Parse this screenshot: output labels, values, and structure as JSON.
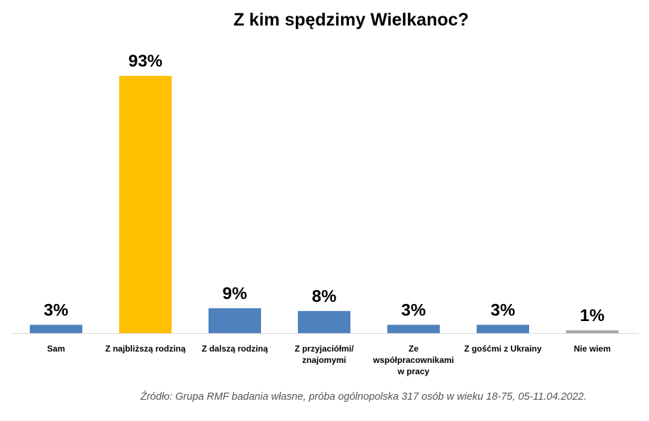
{
  "chart_data": {
    "type": "bar",
    "title": "Z kim spędzimy Wielkanoc?",
    "categories": [
      [
        "Sam"
      ],
      [
        "Z najbliższą rodziną"
      ],
      [
        "Z dalszą rodziną"
      ],
      [
        "Z przyjaciółmi/",
        "znajomymi"
      ],
      [
        "Ze",
        "współpracownikami",
        "w pracy"
      ],
      [
        "Z gośćmi z Ukrainy"
      ],
      [
        "Nie wiem"
      ]
    ],
    "values": [
      3,
      93,
      9,
      8,
      3,
      3,
      1
    ],
    "data_labels": [
      "3%",
      "93%",
      "9%",
      "8%",
      "3%",
      "3%",
      "1%"
    ],
    "colors": [
      "#4f81bd",
      "#ffc000",
      "#4f81bd",
      "#4f81bd",
      "#4f81bd",
      "#4f81bd",
      "#a6a6a6"
    ],
    "ylim": [
      0,
      100
    ],
    "grid": false,
    "legend": "none"
  },
  "source": "Źródło: Grupa RMF badania własne, próba ogólnopolska 317 osób w wieku 18-75, 05-11.04.2022."
}
